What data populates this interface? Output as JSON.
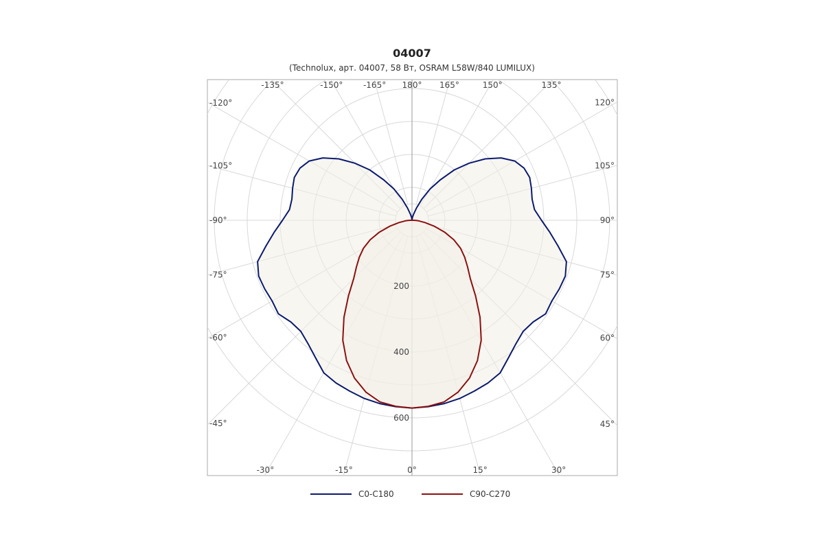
{
  "title": "04007",
  "subtitle": "(Technolux, арт. 04007, 58 Вт, OSRAM L58W/840 LUMILUX)",
  "chart_data": {
    "type": "polar",
    "radial_max": 600,
    "radial_rings": [
      200,
      400,
      600
    ],
    "radial_tick_labels": [
      "200",
      "400",
      "600"
    ],
    "spokes_deg": [
      -180,
      -165,
      -150,
      -135,
      -120,
      -105,
      -90,
      -75,
      -60,
      -45,
      -30,
      -15,
      0,
      15,
      30,
      45,
      60,
      75,
      90,
      105,
      120,
      135,
      150,
      165
    ],
    "angle_labels": [
      {
        "deg": 180,
        "text": "180°"
      },
      {
        "deg": -165,
        "text": "-165°"
      },
      {
        "deg": -150,
        "text": "-150°"
      },
      {
        "deg": -135,
        "text": "-135°"
      },
      {
        "deg": -120,
        "text": "-120°"
      },
      {
        "deg": -105,
        "text": "-105°"
      },
      {
        "deg": -90,
        "text": "-90°"
      },
      {
        "deg": -75,
        "text": "-75°"
      },
      {
        "deg": -60,
        "text": "-60°"
      },
      {
        "deg": -45,
        "text": "-45°"
      },
      {
        "deg": -30,
        "text": "-30°"
      },
      {
        "deg": -15,
        "text": "-15°"
      },
      {
        "deg": 0,
        "text": "0°"
      },
      {
        "deg": 15,
        "text": "15°"
      },
      {
        "deg": 30,
        "text": "30°"
      },
      {
        "deg": 45,
        "text": "45°"
      },
      {
        "deg": 60,
        "text": "60°"
      },
      {
        "deg": 75,
        "text": "75°"
      },
      {
        "deg": 90,
        "text": "90°"
      },
      {
        "deg": 105,
        "text": "105°"
      },
      {
        "deg": 120,
        "text": "120°"
      },
      {
        "deg": 135,
        "text": "135°"
      },
      {
        "deg": 150,
        "text": "150°"
      },
      {
        "deg": 165,
        "text": "165°"
      }
    ],
    "grid": true,
    "legend_position": "bottom",
    "series": [
      {
        "name": "C0-C180",
        "color": "#0a1a6e",
        "angles": [
          0,
          5,
          10,
          15,
          20,
          25,
          30,
          35,
          40,
          45,
          50,
          55,
          60,
          65,
          70,
          75,
          80,
          85,
          90,
          95,
          100,
          105,
          110,
          115,
          120,
          125,
          130,
          135,
          140,
          145,
          150,
          155,
          160,
          165,
          170,
          175,
          180
        ],
        "values": [
          570,
          568,
          565,
          560,
          552,
          545,
          535,
          510,
          490,
          477,
          480,
          495,
          490,
          493,
          495,
          485,
          450,
          420,
          393,
          373,
          370,
          375,
          380,
          375,
          360,
          330,
          290,
          245,
          200,
          150,
          110,
          70,
          40,
          20,
          10,
          3,
          0
        ],
        "mirror": true
      },
      {
        "name": "C90-C270",
        "color": "#8b1010",
        "angles": [
          0,
          5,
          10,
          15,
          20,
          25,
          30,
          35,
          40,
          45,
          50,
          55,
          60,
          65,
          70,
          75,
          80,
          85,
          88,
          90
        ],
        "values": [
          570,
          567,
          560,
          540,
          510,
          470,
          420,
          360,
          300,
          250,
          220,
          195,
          170,
          140,
          105,
          70,
          40,
          20,
          12,
          5
        ],
        "mirror": true
      }
    ]
  }
}
